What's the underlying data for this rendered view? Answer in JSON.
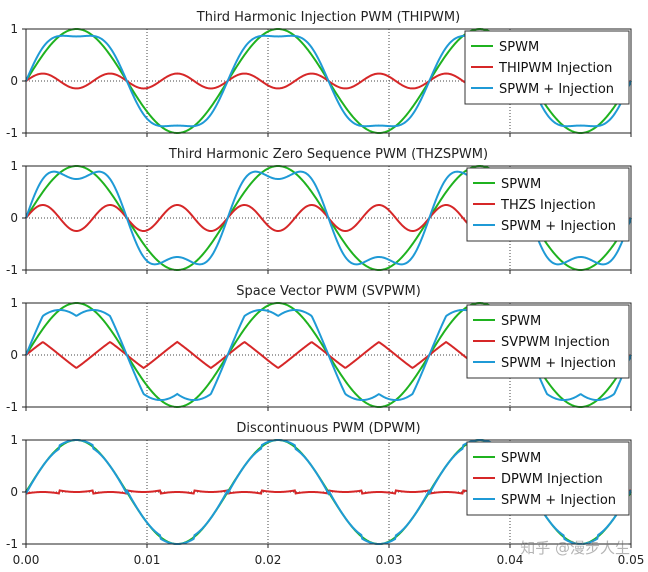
{
  "chart_data": [
    {
      "type": "line",
      "title": "Third Harmonic Injection PWM (THIPWM)",
      "x_range": [
        0,
        0.05
      ],
      "ylim": [
        -1,
        1
      ],
      "y_ticks": [
        "1",
        "0",
        "-1"
      ],
      "grid": "dotted",
      "legend_position": "top-right",
      "series": [
        {
          "name": "SPWM",
          "color": "#1fb21f",
          "waveform": "sine",
          "amplitude": 1.0,
          "frequency_hz": 60
        },
        {
          "name": "THIPWM Injection",
          "color": "#d62728",
          "waveform": "third-harmonic",
          "amplitude": 0.143,
          "frequency_hz": 180
        },
        {
          "name": "SPWM + Injection",
          "color": "#1f9ad6",
          "waveform": "sum",
          "peak": 0.87
        }
      ]
    },
    {
      "type": "line",
      "title": "Third Harmonic Zero Sequence PWM (THZSPWM)",
      "x_range": [
        0,
        0.05
      ],
      "ylim": [
        -1,
        1
      ],
      "y_ticks": [
        "1",
        "0",
        "-1"
      ],
      "grid": "dotted",
      "legend_position": "top-right",
      "series": [
        {
          "name": "SPWM",
          "color": "#1fb21f",
          "waveform": "sine",
          "amplitude": 1.0,
          "frequency_hz": 60
        },
        {
          "name": "THZS Injection",
          "color": "#d62728",
          "waveform": "third-harmonic-zero-sequence",
          "amplitude": 0.25,
          "frequency_hz": 180
        },
        {
          "name": "SPWM + Injection",
          "color": "#1f9ad6",
          "waveform": "sum",
          "peak": 0.866
        }
      ]
    },
    {
      "type": "line",
      "title": "Space Vector PWM (SVPWM)",
      "x_range": [
        0,
        0.05
      ],
      "ylim": [
        -1,
        1
      ],
      "y_ticks": [
        "1",
        "0",
        "-1"
      ],
      "grid": "dotted",
      "legend_position": "top-right",
      "series": [
        {
          "name": "SPWM",
          "color": "#1fb21f",
          "waveform": "sine",
          "amplitude": 1.0,
          "frequency_hz": 60
        },
        {
          "name": "SVPWM Injection",
          "color": "#d62728",
          "waveform": "triangle-zero-sequence",
          "amplitude": 0.25,
          "frequency_hz": 180
        },
        {
          "name": "SPWM + Injection",
          "color": "#1f9ad6",
          "waveform": "sum",
          "peak": 0.866
        }
      ]
    },
    {
      "type": "line",
      "title": "Discontinuous PWM (DPWM)",
      "x_range": [
        0,
        0.05
      ],
      "ylim": [
        -1,
        1
      ],
      "y_ticks": [
        "1",
        "0",
        "-1"
      ],
      "x_ticks": [
        "0.00",
        "0.01",
        "0.02",
        "0.03",
        "0.04",
        "0.05"
      ],
      "grid": "dotted",
      "legend_position": "top-right",
      "series": [
        {
          "name": "SPWM",
          "color": "#1fb21f",
          "waveform": "sine",
          "amplitude": 1.0,
          "frequency_hz": 60
        },
        {
          "name": "DPWM Injection",
          "color": "#d62728",
          "waveform": "discontinuous-sawtooth",
          "amplitude": 0.13,
          "frequency_hz": 180
        },
        {
          "name": "SPWM + Injection",
          "color": "#1f9ad6",
          "waveform": "sum",
          "peak": 1.0
        }
      ]
    }
  ],
  "watermark": "知乎 @漫步人生"
}
